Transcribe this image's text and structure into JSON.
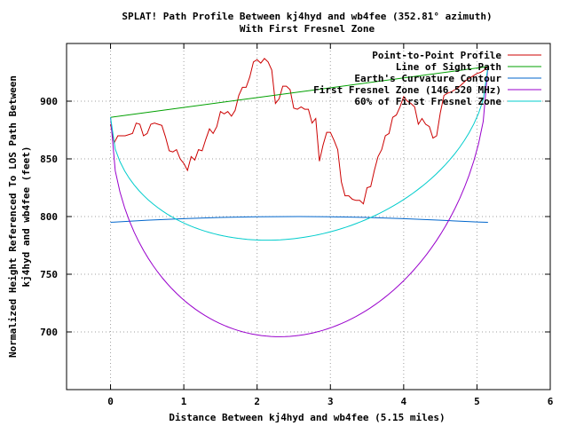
{
  "chart_data": {
    "type": "line",
    "title": "SPLAT! Path Profile Between kj4hyd and wb4fee (352.81° azimuth)",
    "subtitle": "With First Fresnel Zone",
    "xlabel": "Distance Between kj4hyd and wb4fee (5.15 miles)",
    "ylabel_lines": [
      "Normalized Height Referenced To LOS Path Between",
      "kj4hyd and wb4fee (feet)"
    ],
    "xlim": [
      -0.6,
      6
    ],
    "ylim": [
      650,
      950
    ],
    "x_ticks": [
      0,
      1,
      2,
      3,
      4,
      5,
      6
    ],
    "y_ticks": [
      700,
      750,
      800,
      850,
      900
    ],
    "x_tick_labels": [
      "0",
      "1",
      "2",
      "3",
      "4",
      "5",
      "6"
    ],
    "y_tick_labels": [
      "700",
      "750",
      "800",
      "850",
      "900"
    ],
    "grid": true,
    "legend_position": "top-right",
    "series": [
      {
        "name": "Point-to-Point Profile",
        "color": "#cc0000",
        "x": [
          0,
          0.05,
          0.1,
          0.2,
          0.3,
          0.35,
          0.4,
          0.45,
          0.5,
          0.55,
          0.6,
          0.65,
          0.7,
          0.75,
          0.8,
          0.85,
          0.9,
          0.95,
          1.0,
          1.05,
          1.1,
          1.15,
          1.2,
          1.25,
          1.3,
          1.35,
          1.4,
          1.45,
          1.5,
          1.55,
          1.6,
          1.65,
          1.7,
          1.75,
          1.8,
          1.85,
          1.9,
          1.95,
          2.0,
          2.05,
          2.1,
          2.15,
          2.2,
          2.25,
          2.3,
          2.35,
          2.4,
          2.45,
          2.5,
          2.55,
          2.6,
          2.65,
          2.7,
          2.75,
          2.8,
          2.85,
          2.9,
          2.95,
          3.0,
          3.05,
          3.1,
          3.15,
          3.2,
          3.25,
          3.3,
          3.35,
          3.4,
          3.45,
          3.5,
          3.55,
          3.6,
          3.65,
          3.7,
          3.75,
          3.8,
          3.85,
          3.9,
          3.95,
          4.0,
          4.05,
          4.1,
          4.15,
          4.2,
          4.25,
          4.3,
          4.35,
          4.4,
          4.45,
          4.5,
          4.55,
          4.6,
          4.65,
          4.7,
          4.75,
          4.8,
          4.85,
          4.9,
          4.95,
          5.0,
          5.05,
          5.1,
          5.15
        ],
        "y": [
          880,
          864,
          870,
          870,
          872,
          881,
          880,
          870,
          872,
          880,
          881,
          880,
          879,
          869,
          857,
          856,
          858,
          850,
          846,
          840,
          852,
          849,
          858,
          857,
          867,
          876,
          872,
          878,
          891,
          889,
          891,
          887,
          892,
          905,
          912,
          912,
          921,
          934,
          936,
          933,
          937,
          934,
          927,
          898,
          902,
          913,
          913,
          910,
          894,
          893,
          895,
          893,
          893,
          881,
          885,
          848,
          862,
          873,
          873,
          866,
          858,
          830,
          818,
          818,
          815,
          814,
          814,
          811,
          825,
          826,
          840,
          852,
          858,
          870,
          872,
          886,
          888,
          895,
          904,
          900,
          898,
          895,
          880,
          885,
          880,
          878,
          868,
          870,
          890,
          905,
          907,
          908,
          910,
          912,
          915,
          918,
          920,
          922,
          924,
          925,
          927,
          930
        ]
      },
      {
        "name": "Line of Sight Path",
        "color": "#00a000",
        "x": [
          0,
          5.15
        ],
        "y": [
          886,
          930
        ]
      },
      {
        "name": "Earth's Curvature Contour",
        "color": "#0066cc",
        "x": [
          0,
          0.5,
          1.0,
          1.5,
          2.0,
          2.575,
          3.0,
          3.5,
          4.0,
          4.5,
          5.0,
          5.15
        ],
        "y": [
          795,
          796.8,
          798.2,
          799.2,
          799.8,
          800,
          799.8,
          799.2,
          798.2,
          796.8,
          795.3,
          795
        ]
      },
      {
        "name": "First Fresnel Zone (146.520 MHz)",
        "color": "#9900cc",
        "x_line": [
          0,
          5.15
        ],
        "y_line": [
          886,
          930
        ],
        "depth": 211
      },
      {
        "name": "60% of First Fresnel Zone",
        "color": "#00cccc",
        "x_line": [
          0,
          5.15
        ],
        "y_line": [
          886,
          930
        ],
        "depth": 126.6
      }
    ]
  }
}
